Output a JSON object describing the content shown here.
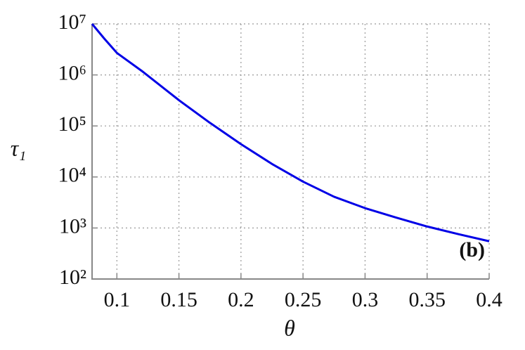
{
  "chart_data": {
    "type": "line",
    "x_label": "θ",
    "y_label": "τ₁",
    "annotation": "(b)",
    "log_y": true,
    "grid": true,
    "xlim": [
      0.08,
      0.4
    ],
    "xticks": [
      0.1,
      0.15,
      0.2,
      0.25,
      0.3,
      0.35,
      0.4
    ],
    "ylim": [
      100,
      10000000
    ],
    "yticks": [
      {
        "value": 100,
        "label": "10²"
      },
      {
        "value": 1000,
        "label": "10³"
      },
      {
        "value": 10000,
        "label": "10⁴"
      },
      {
        "value": 100000,
        "label": "10⁵"
      },
      {
        "value": 1000000,
        "label": "10⁶"
      },
      {
        "value": 10000000,
        "label": "10⁷"
      }
    ],
    "x": [
      0.08,
      0.09,
      0.1,
      0.12,
      0.15,
      0.175,
      0.2,
      0.225,
      0.25,
      0.275,
      0.3,
      0.325,
      0.35,
      0.375,
      0.4
    ],
    "series": [
      {
        "color": "#0000e6",
        "values": [
          10000000,
          5100000,
          2700000,
          1200000,
          320000,
          115000,
          44000,
          18000,
          8100,
          4100,
          2450,
          1600,
          1070,
          760,
          550
        ]
      }
    ]
  }
}
